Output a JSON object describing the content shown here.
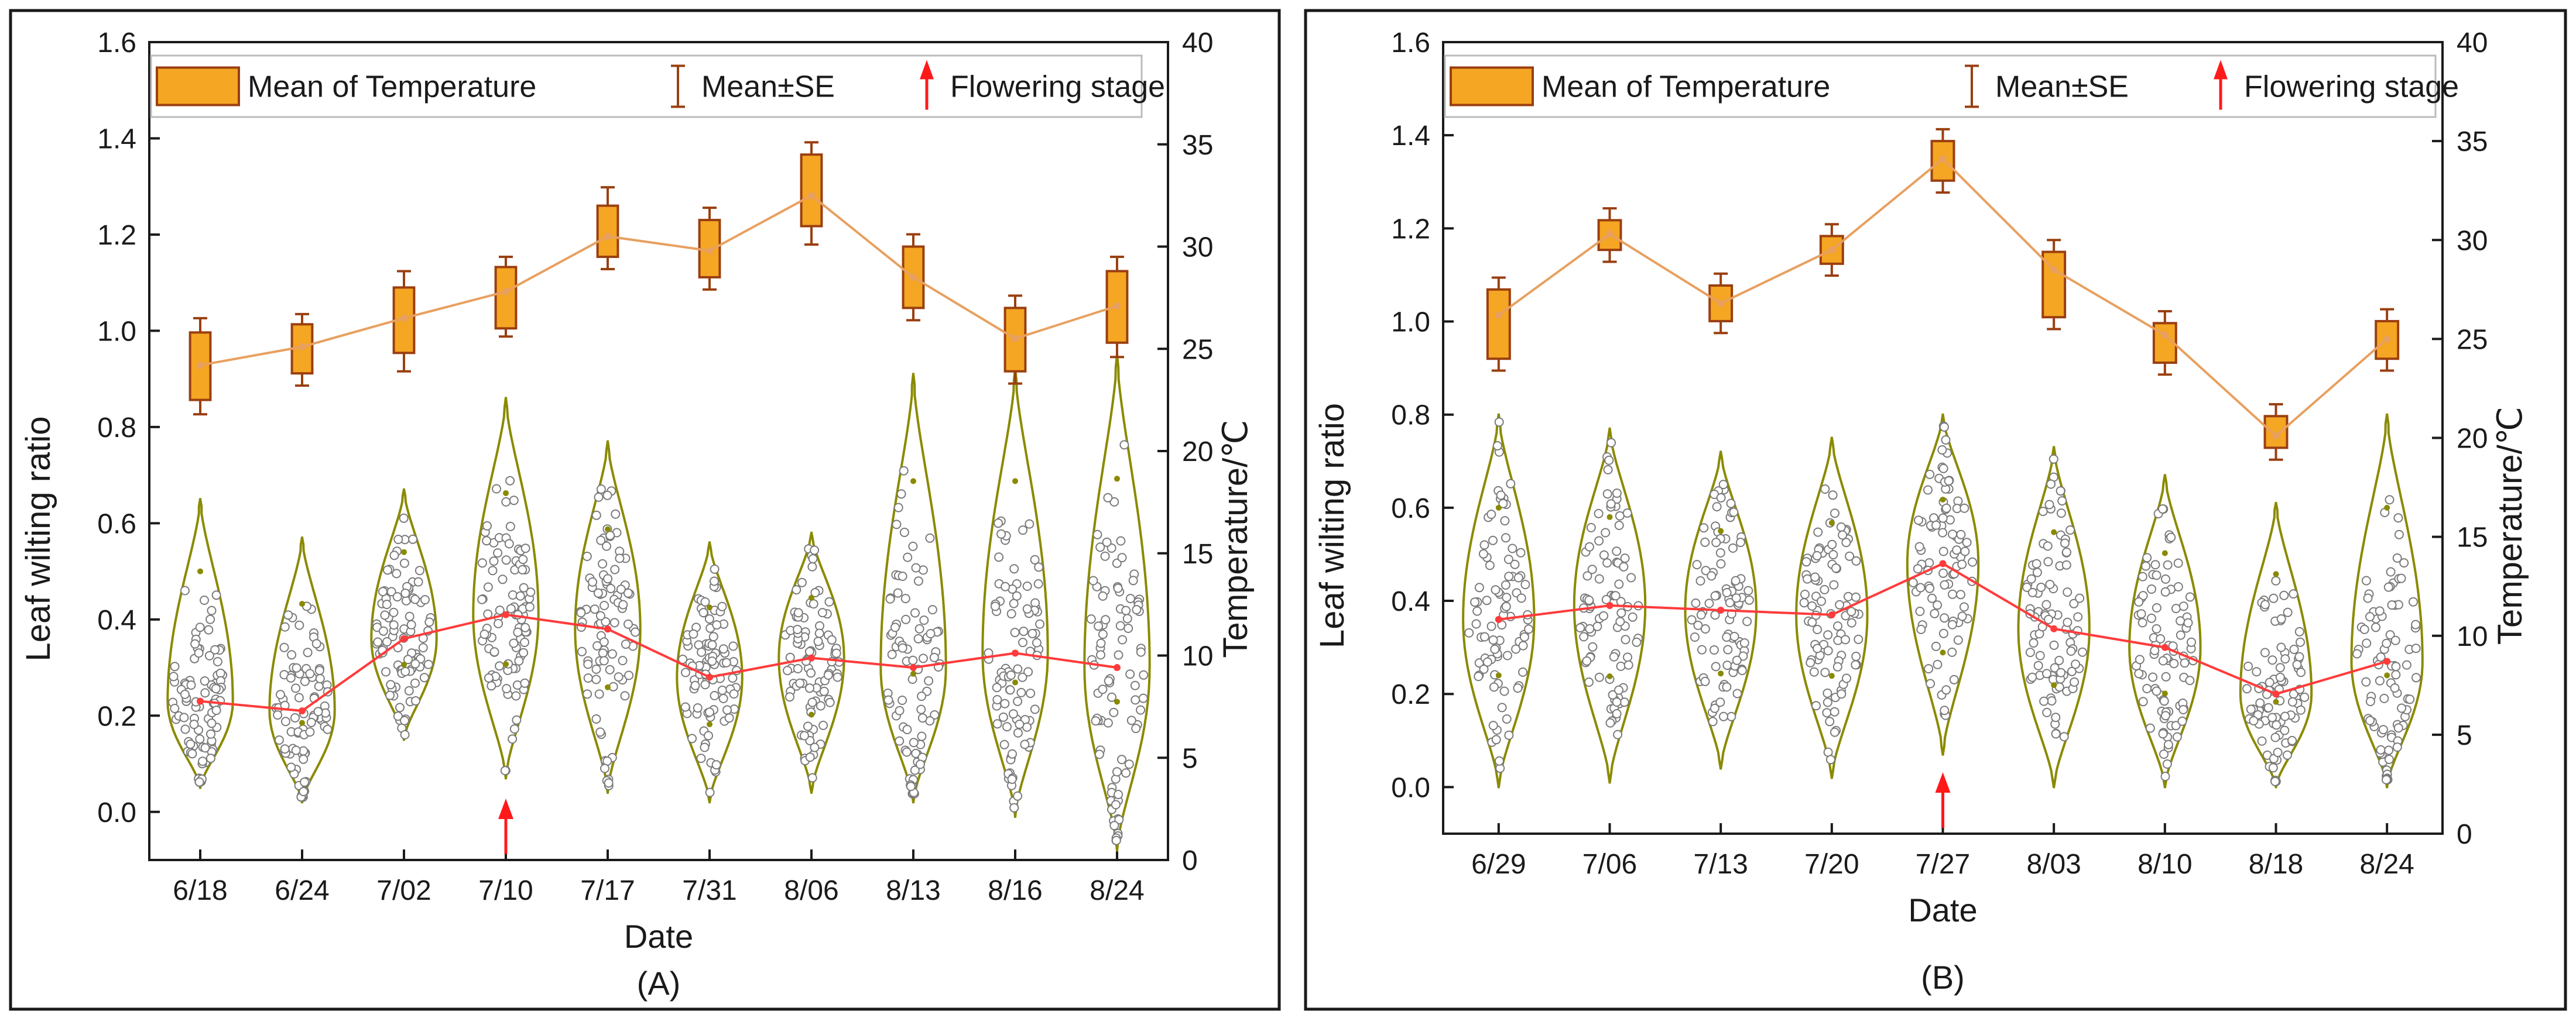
{
  "colors": {
    "box_fill": "#f5a623",
    "box_stroke": "#9a3f10",
    "temp_line": "#e8a060",
    "wilt_line": "#ff3b3b",
    "violin": "#8a8a00",
    "arrow": "#ff1a1a",
    "frame": "#1a1a1a"
  },
  "legend": {
    "mean_temp": "Mean of Temperature",
    "mean_se": "Mean±SE",
    "flowering": "Flowering stage"
  },
  "chart_data": [
    {
      "type": "box+violin",
      "panel_label": "(A)",
      "xlabel": "Date",
      "ylabel_left": "Leaf wilting ratio",
      "ylabel_right": "Temperature/℃",
      "ylim_left": [
        -0.1,
        1.6
      ],
      "ylim_right": [
        0,
        40
      ],
      "yticks_left": [
        "0.0",
        "0.2",
        "0.4",
        "0.6",
        "0.8",
        "1.0",
        "1.2",
        "1.4",
        "1.6"
      ],
      "yticks_right": [
        "0",
        "5",
        "10",
        "15",
        "20",
        "25",
        "30",
        "35",
        "40"
      ],
      "categories": [
        "6/18",
        "6/24",
        "7/02",
        "7/10",
        "7/17",
        "7/31",
        "8/06",
        "8/13",
        "8/16",
        "8/24"
      ],
      "flowering_index": 3,
      "wilting_mean": [
        0.23,
        0.21,
        0.36,
        0.41,
        0.38,
        0.28,
        0.32,
        0.3,
        0.33,
        0.3
      ],
      "wilting_min": [
        0.05,
        0.02,
        0.15,
        0.07,
        0.04,
        0.02,
        0.04,
        0.02,
        -0.01,
        -0.08
      ],
      "wilting_max": [
        0.65,
        0.57,
        0.67,
        0.86,
        0.77,
        0.56,
        0.58,
        0.91,
        0.92,
        0.95
      ],
      "temp_mean": [
        24.2,
        25.1,
        26.5,
        27.8,
        30.5,
        29.8,
        32.5,
        28.5,
        25.5,
        27.1
      ],
      "temp_q1": [
        22.5,
        23.8,
        24.8,
        26.0,
        29.5,
        28.5,
        31.0,
        27.0,
        23.9,
        25.3
      ],
      "temp_q3": [
        25.8,
        26.2,
        28.0,
        29.0,
        32.0,
        31.3,
        34.5,
        30.0,
        27.0,
        28.8
      ],
      "temp_min": [
        21.8,
        23.2,
        23.9,
        25.6,
        28.9,
        27.9,
        30.1,
        26.4,
        23.3,
        24.6
      ],
      "temp_max": [
        26.5,
        26.7,
        28.8,
        29.5,
        32.9,
        31.9,
        35.1,
        30.6,
        27.6,
        29.5
      ]
    },
    {
      "type": "box+violin",
      "panel_label": "(B)",
      "xlabel": "Date",
      "ylabel_left": "Leaf wilting ratio",
      "ylabel_right": "Temperature/℃",
      "ylim_left": [
        -0.1,
        1.6
      ],
      "ylim_right": [
        0,
        40
      ],
      "yticks_left": [
        "0.0",
        "0.2",
        "0.4",
        "0.6",
        "0.8",
        "1.0",
        "1.2",
        "1.4",
        "1.6"
      ],
      "yticks_right": [
        "0",
        "5",
        "10",
        "15",
        "20",
        "25",
        "30",
        "35",
        "40"
      ],
      "categories": [
        "6/29",
        "7/06",
        "7/13",
        "7/20",
        "7/27",
        "8/03",
        "8/10",
        "8/18",
        "8/24"
      ],
      "flowering_index": 4,
      "wilting_mean": [
        0.36,
        0.39,
        0.38,
        0.37,
        0.48,
        0.34,
        0.3,
        0.2,
        0.27
      ],
      "wilting_min": [
        0.0,
        0.01,
        0.04,
        0.02,
        0.07,
        0.0,
        0.0,
        0.0,
        0.0
      ],
      "wilting_max": [
        0.8,
        0.77,
        0.72,
        0.75,
        0.8,
        0.73,
        0.67,
        0.61,
        0.8
      ],
      "temp_mean": [
        26.2,
        30.3,
        26.8,
        29.5,
        34.1,
        28.5,
        25.2,
        20.1,
        25.0
      ],
      "temp_q1": [
        24.0,
        29.5,
        25.9,
        28.8,
        33.0,
        26.1,
        23.8,
        19.5,
        24.0
      ],
      "temp_q3": [
        27.5,
        31.0,
        27.7,
        30.2,
        35.0,
        29.4,
        25.8,
        21.1,
        25.9
      ],
      "temp_min": [
        23.4,
        28.9,
        25.3,
        28.2,
        32.4,
        25.5,
        23.2,
        18.9,
        23.4
      ],
      "temp_max": [
        28.1,
        31.6,
        28.3,
        30.8,
        35.6,
        30.0,
        26.4,
        21.7,
        26.5
      ]
    }
  ]
}
